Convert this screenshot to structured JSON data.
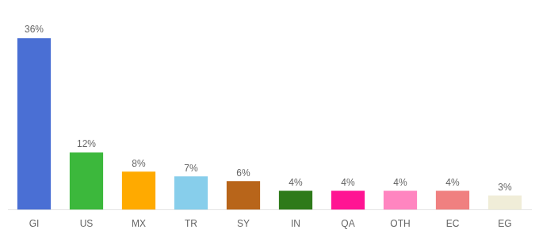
{
  "chart_data": {
    "type": "bar",
    "categories": [
      "GI",
      "US",
      "MX",
      "TR",
      "SY",
      "IN",
      "QA",
      "OTH",
      "EC",
      "EG"
    ],
    "values": [
      36,
      12,
      8,
      7,
      6,
      4,
      4,
      4,
      4,
      3
    ],
    "value_labels": [
      "36%",
      "12%",
      "8%",
      "7%",
      "6%",
      "4%",
      "4%",
      "4%",
      "4%",
      "3%"
    ],
    "colors": [
      "#4A6FD4",
      "#3CB83C",
      "#FFAA00",
      "#87CEEB",
      "#B8651A",
      "#2E7A1A",
      "#FF1493",
      "#FF85C0",
      "#F08080",
      "#F0EDD8"
    ],
    "ylim": [
      0,
      40
    ],
    "grid": false,
    "data_labels": true,
    "tick_labels": "x"
  }
}
